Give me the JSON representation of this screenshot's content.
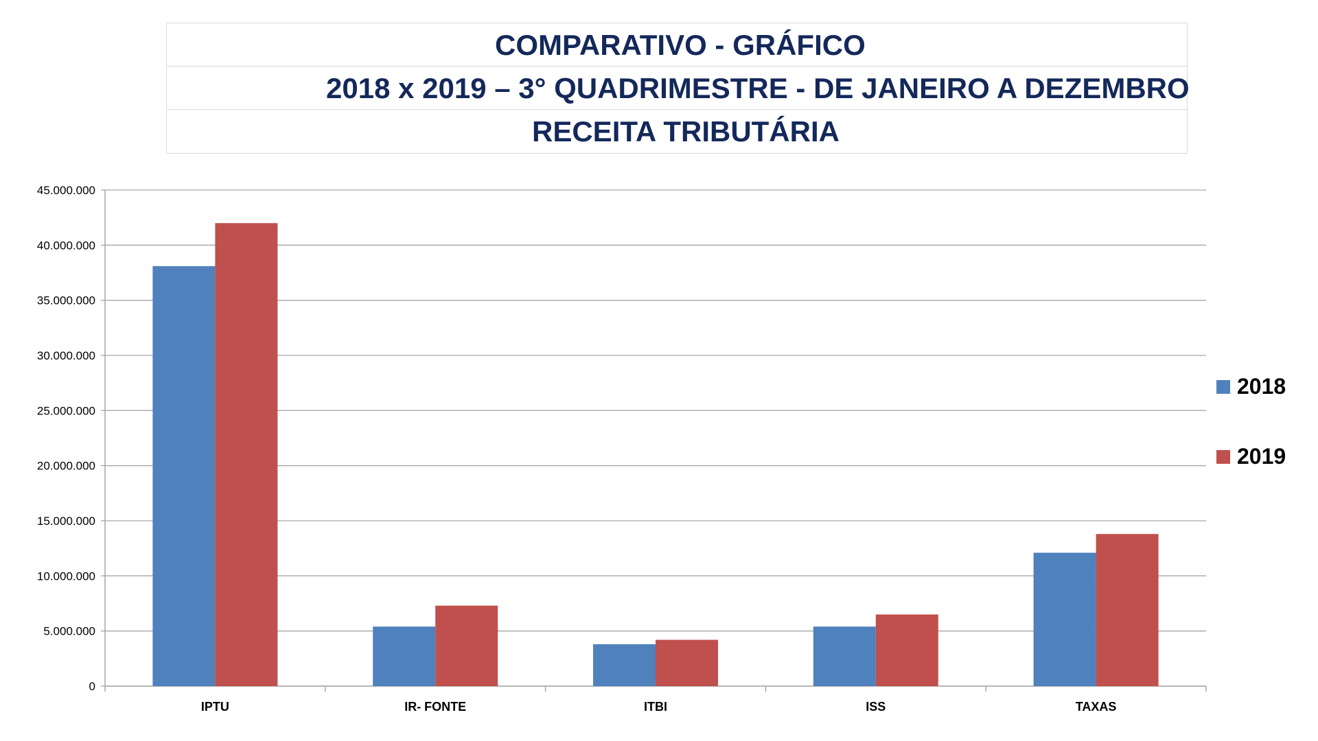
{
  "header": {
    "line1": "COMPARATIVO - GRÁFICO",
    "line2": "2018  x  2019 – 3° QUADRIMESTRE - DE JANEIRO A DEZEMBRO",
    "line3": "RECEITA TRIBUTÁRIA"
  },
  "colors": {
    "series_2018": "#4f81bd",
    "series_2019": "#c0504d",
    "title": "#14285a",
    "grid": "#a6a6a6"
  },
  "chart_data": {
    "type": "bar",
    "title": "RECEITA TRIBUTÁRIA",
    "xlabel": "",
    "ylabel": "",
    "categories": [
      "IPTU",
      "IR- FONTE",
      "ITBI",
      "ISS",
      "TAXAS"
    ],
    "series": [
      {
        "name": "2018",
        "values": [
          38100000,
          5400000,
          3800000,
          5400000,
          12100000
        ]
      },
      {
        "name": "2019",
        "values": [
          42000000,
          7300000,
          4200000,
          6500000,
          13800000
        ]
      }
    ],
    "ylim": [
      0,
      45000000
    ],
    "yticks": [
      0,
      5000000,
      10000000,
      15000000,
      20000000,
      25000000,
      30000000,
      35000000,
      40000000,
      45000000
    ],
    "ytick_labels": [
      "0",
      "5.000.000",
      "10.000.000",
      "15.000.000",
      "20.000.000",
      "25.000.000",
      "30.000.000",
      "35.000.000",
      "40.000.000",
      "45.000.000"
    ],
    "grid": true,
    "legend_position": "right"
  }
}
